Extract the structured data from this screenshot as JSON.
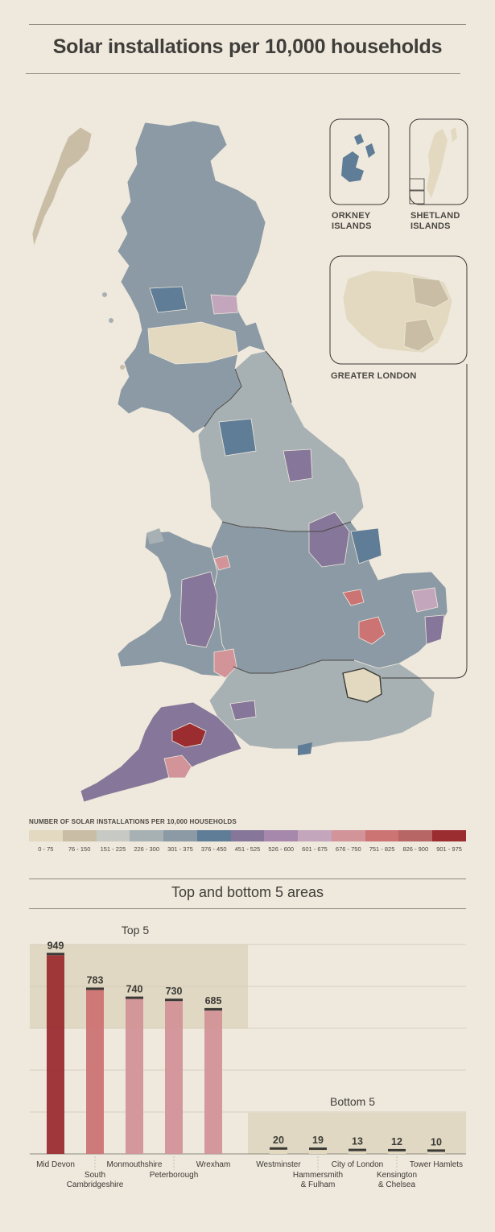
{
  "title": "Solar installations per 10,000 households",
  "insets": {
    "orkney": "ORKNEY\nISLANDS",
    "shetland": "SHETLAND\nISLANDS",
    "london": "GREATER LONDON"
  },
  "legend": {
    "title": "NUMBER OF SOLAR INSTALLATIONS PER 10,000 HOUSEHOLDS",
    "bins": [
      {
        "label": "0 - 75",
        "color": "#e2d9c0"
      },
      {
        "label": "76 - 150",
        "color": "#c9bea5"
      },
      {
        "label": "151 - 225",
        "color": "#c6c9c4"
      },
      {
        "label": "226 - 300",
        "color": "#a7b0b3"
      },
      {
        "label": "301 - 375",
        "color": "#8b9aa5"
      },
      {
        "label": "376 - 450",
        "color": "#5f7d96"
      },
      {
        "label": "451 - 525",
        "color": "#86779a"
      },
      {
        "label": "526 - 600",
        "color": "#a688ac"
      },
      {
        "label": "601 - 675",
        "color": "#c4a6bc"
      },
      {
        "label": "676 - 750",
        "color": "#d29498"
      },
      {
        "label": "751 - 825",
        "color": "#cc7474"
      },
      {
        "label": "826 - 900",
        "color": "#b86565"
      },
      {
        "label": "901 - 975",
        "color": "#9b2d30"
      }
    ]
  },
  "section_title": "Top and bottom 5 areas",
  "chart_data": {
    "type": "bar",
    "title": "Top and bottom 5 areas",
    "groups": [
      {
        "name": "Top 5",
        "categories": [
          "Mid Devon",
          "South\nCambridgeshire",
          "Monmouthshire",
          "Peterborough",
          "Wrexham"
        ],
        "values": [
          949,
          783,
          740,
          730,
          685
        ],
        "colors": [
          "#9b2d30",
          "#cc7474",
          "#d29498",
          "#d29498",
          "#d29498"
        ]
      },
      {
        "name": "Bottom 5",
        "categories": [
          "Westminster",
          "Hammersmith\n& Fulham",
          "City of London",
          "Kensington\n& Chelsea",
          "Tower Hamlets"
        ],
        "values": [
          20,
          19,
          13,
          12,
          10
        ],
        "colors": [
          "#e2d9c0",
          "#e2d9c0",
          "#e2d9c0",
          "#e2d9c0",
          "#e2d9c0"
        ]
      }
    ],
    "ylim": [
      0,
      1000
    ],
    "grid": true
  }
}
